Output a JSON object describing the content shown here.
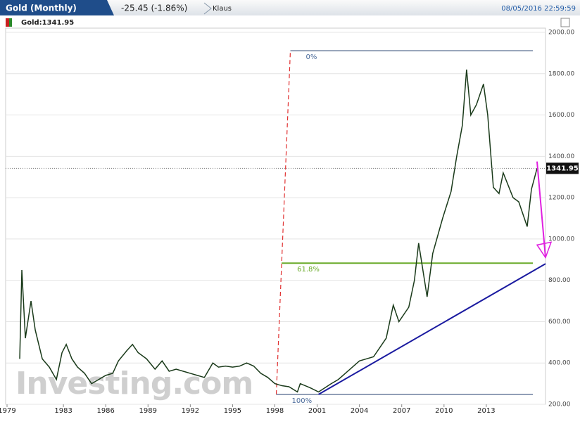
{
  "header": {
    "title": "Gold (Monthly)",
    "change": "-25.45 (-1.86%)",
    "user": "Klaus",
    "timestamp": "08/05/2016 22:59:59"
  },
  "chart_data": {
    "type": "line",
    "watermark": "Investing.com",
    "x": [
      1979.9,
      1980.05,
      1980.3,
      1980.7,
      1981.0,
      1981.5,
      1982.0,
      1982.5,
      1982.9,
      1983.2,
      1983.6,
      1984.0,
      1984.5,
      1985.0,
      1985.5,
      1986.0,
      1986.5,
      1986.9,
      1987.5,
      1987.9,
      1988.3,
      1988.9,
      1989.5,
      1990.0,
      1990.5,
      1991.0,
      1991.5,
      1992.0,
      1992.5,
      1993.0,
      1993.6,
      1994.0,
      1994.5,
      1995.0,
      1995.5,
      1996.0,
      1996.5,
      1997.0,
      1997.5,
      1998.0,
      1998.5,
      1999.0,
      1999.6,
      1999.8,
      2000.5,
      2001.1,
      2002.0,
      2002.5,
      2003.0,
      2004.0,
      2005.0,
      2005.9,
      2006.4,
      2006.8,
      2007.5,
      2007.9,
      2008.2,
      2008.8,
      2009.2,
      2009.9,
      2010.5,
      2010.9,
      2011.3,
      2011.6,
      2011.9,
      2012.3,
      2012.8,
      2013.1,
      2013.5,
      2013.9,
      2014.2,
      2014.9,
      2015.3,
      2015.9,
      2016.2,
      2016.6
    ],
    "series": [
      {
        "name": "Gold:1341.95",
        "color": "#1a3a1a",
        "values": [
          420,
          850,
          520,
          700,
          560,
          420,
          380,
          320,
          450,
          490,
          420,
          380,
          350,
          300,
          320,
          340,
          350,
          410,
          460,
          490,
          450,
          420,
          370,
          410,
          360,
          370,
          360,
          350,
          340,
          330,
          400,
          380,
          385,
          380,
          385,
          400,
          385,
          350,
          330,
          300,
          290,
          285,
          260,
          300,
          280,
          260,
          300,
          320,
          350,
          410,
          430,
          520,
          680,
          600,
          670,
          800,
          980,
          720,
          930,
          1100,
          1230,
          1400,
          1550,
          1820,
          1600,
          1650,
          1750,
          1600,
          1250,
          1220,
          1320,
          1200,
          1180,
          1060,
          1240,
          1342
        ]
      }
    ],
    "current_price": 1341.95,
    "fibonacci": {
      "start": [
        1998.1,
        248
      ],
      "end": [
        1999.1,
        1911
      ],
      "levels": [
        {
          "value": 0,
          "label": "0%"
        },
        {
          "value": 61.8,
          "label": "61.8%"
        },
        {
          "value": 100,
          "label": "100%"
        }
      ]
    },
    "trendline": [
      [
        2001.1,
        248
      ],
      [
        2017.2,
        880
      ]
    ],
    "arrow": [
      [
        2016.6,
        1375
      ],
      [
        2017.2,
        910
      ]
    ],
    "xlim": [
      1978.9,
      2017.2
    ],
    "ylim": [
      200,
      2000
    ],
    "xticks": [
      1979,
      1983,
      1986,
      1989,
      1992,
      1995,
      1998,
      2001,
      2004,
      2007,
      2010,
      2013
    ],
    "yticks": [
      {
        "value": 200,
        "label": "200.00"
      },
      {
        "value": 400,
        "label": "400.00"
      },
      {
        "value": 600,
        "label": "600.00"
      },
      {
        "value": 800,
        "label": "800.00"
      },
      {
        "value": 1000,
        "label": "1000.00"
      },
      {
        "value": 1200,
        "label": "1200.00"
      },
      {
        "value": 1400,
        "label": "1400.00"
      },
      {
        "value": 1600,
        "label": "1600.00"
      },
      {
        "value": 1800,
        "label": "1800.00"
      },
      {
        "value": 2000,
        "label": "2000.00"
      }
    ],
    "grid": true
  }
}
